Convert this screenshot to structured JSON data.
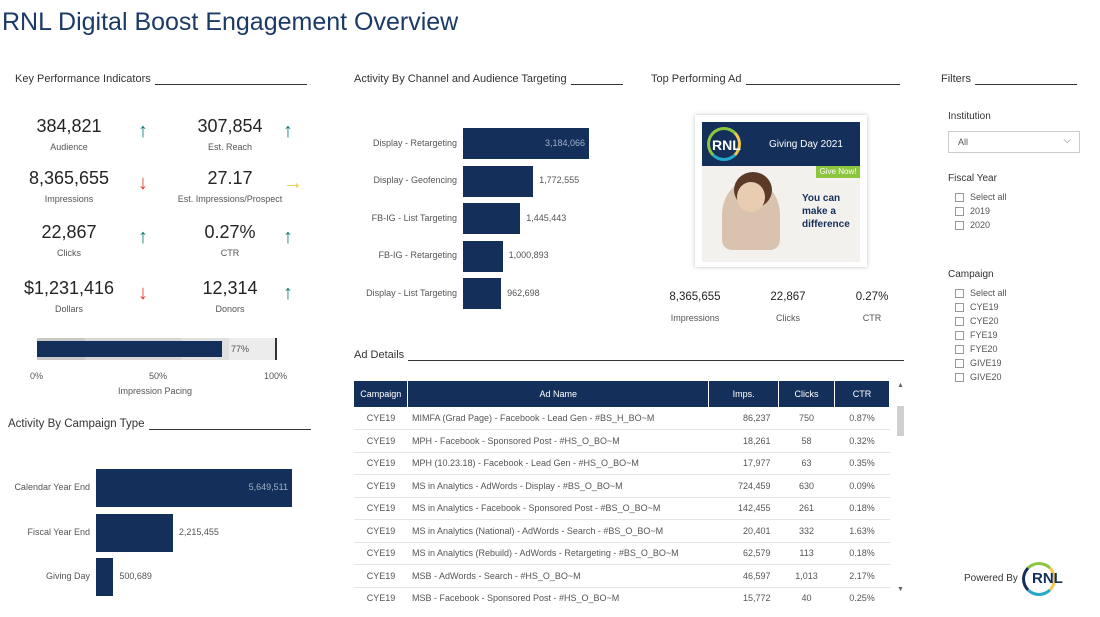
{
  "title": "RNL Digital Boost Engagement Overview",
  "kpi": {
    "header": "Key Performance Indicators",
    "items": [
      {
        "value": "384,821",
        "label": "Audience",
        "trend": "up"
      },
      {
        "value": "307,854",
        "label": "Est. Reach",
        "trend": "up"
      },
      {
        "value": "8,365,655",
        "label": "Impressions",
        "trend": "down"
      },
      {
        "value": "27.17",
        "label": "Est. Impressions/Prospect",
        "trend": "right"
      },
      {
        "value": "22,867",
        "label": "Clicks",
        "trend": "up"
      },
      {
        "value": "0.27%",
        "label": "CTR",
        "trend": "up"
      },
      {
        "value": "$1,231,416",
        "label": "Dollars",
        "trend": "down"
      },
      {
        "value": "12,314",
        "label": "Donors",
        "trend": "up"
      }
    ],
    "pacing": {
      "value_label": "77%",
      "fraction": 0.77,
      "label": "Impression Pacing",
      "ticks": [
        "0%",
        "50%",
        "100%"
      ]
    }
  },
  "channel": {
    "header": "Activity By Channel and Audience Targeting",
    "chart_data": {
      "type": "bar",
      "orientation": "horizontal",
      "categories": [
        "Display - Retargeting",
        "Display - Geofencing",
        "FB-IG - List Targeting",
        "FB-IG - Retargeting",
        "Display - List Targeting"
      ],
      "values": [
        3184066,
        1772555,
        1445443,
        1000893,
        962698
      ],
      "labels": [
        "3,184,066",
        "1,772,555",
        "1,445,443",
        "1,000,893",
        "962,698"
      ]
    }
  },
  "campaign_type": {
    "header": "Activity By Campaign Type",
    "chart_data": {
      "type": "bar",
      "orientation": "horizontal",
      "categories": [
        "Calendar Year End",
        "Fiscal Year End",
        "Giving Day"
      ],
      "values": [
        5649511,
        2215455,
        500689
      ],
      "labels": [
        "5,649,511",
        "2,215,455",
        "500,689"
      ]
    }
  },
  "top_ad": {
    "header": "Top Performing Ad",
    "ad_logo": "RNL",
    "ad_title": "Giving Day 2021",
    "ad_cta": "Give Now!",
    "ad_text": [
      "You can",
      "make a",
      "difference"
    ],
    "stats": [
      {
        "value": "8,365,655",
        "label": "Impressions"
      },
      {
        "value": "22,867",
        "label": "Clicks"
      },
      {
        "value": "0.27%",
        "label": "CTR"
      }
    ]
  },
  "ad_details": {
    "header": "Ad Details",
    "columns": [
      "Campaign",
      "Ad Name",
      "Imps.",
      "Clicks",
      "CTR"
    ],
    "rows": [
      [
        "CYE19",
        "MIMFA (Grad Page) - Facebook - Lead Gen - #BS_H_BO~M",
        "86,237",
        "750",
        "0.87%"
      ],
      [
        "CYE19",
        "MPH - Facebook - Sponsored Post - #HS_O_BO~M",
        "18,261",
        "58",
        "0.32%"
      ],
      [
        "CYE19",
        "MPH (10.23.18) - Facebook - Lead Gen - #HS_O_BO~M",
        "17,977",
        "63",
        "0.35%"
      ],
      [
        "CYE19",
        "MS in Analytics - AdWords - Display - #BS_O_BO~M",
        "724,459",
        "630",
        "0.09%"
      ],
      [
        "CYE19",
        "MS in Analytics - Facebook - Sponsored Post - #BS_O_BO~M",
        "142,455",
        "261",
        "0.18%"
      ],
      [
        "CYE19",
        "MS in Analytics (National) - AdWords - Search - #BS_O_BO~M",
        "20,401",
        "332",
        "1.63%"
      ],
      [
        "CYE19",
        "MS in Analytics (Rebuild) - AdWords - Retargeting - #BS_O_BO~M",
        "62,579",
        "113",
        "0.18%"
      ],
      [
        "CYE19",
        "MSB - AdWords - Search - #HS_O_BO~M",
        "46,597",
        "1,013",
        "2.17%"
      ],
      [
        "CYE19",
        "MSB - Facebook - Sponsored Post - #HS_O_BO~M",
        "15,772",
        "40",
        "0.25%"
      ]
    ]
  },
  "filters": {
    "header": "Filters",
    "institution": {
      "label": "Institution",
      "selected": "All"
    },
    "fiscal_year": {
      "label": "Fiscal Year",
      "options": [
        "Select all",
        "2019",
        "2020"
      ]
    },
    "campaign": {
      "label": "Campaign",
      "options": [
        "Select all",
        "CYE19",
        "CYE20",
        "FYE19",
        "FYE20",
        "GIVE19",
        "GIVE20"
      ]
    }
  },
  "powered_by": {
    "label": "Powered By",
    "logo": "RNL"
  },
  "colors": {
    "navy": "#14305a",
    "up": "#127c7c",
    "down": "#d93b30",
    "neutral": "#f2c94c",
    "ad_green": "#8cc63f"
  }
}
